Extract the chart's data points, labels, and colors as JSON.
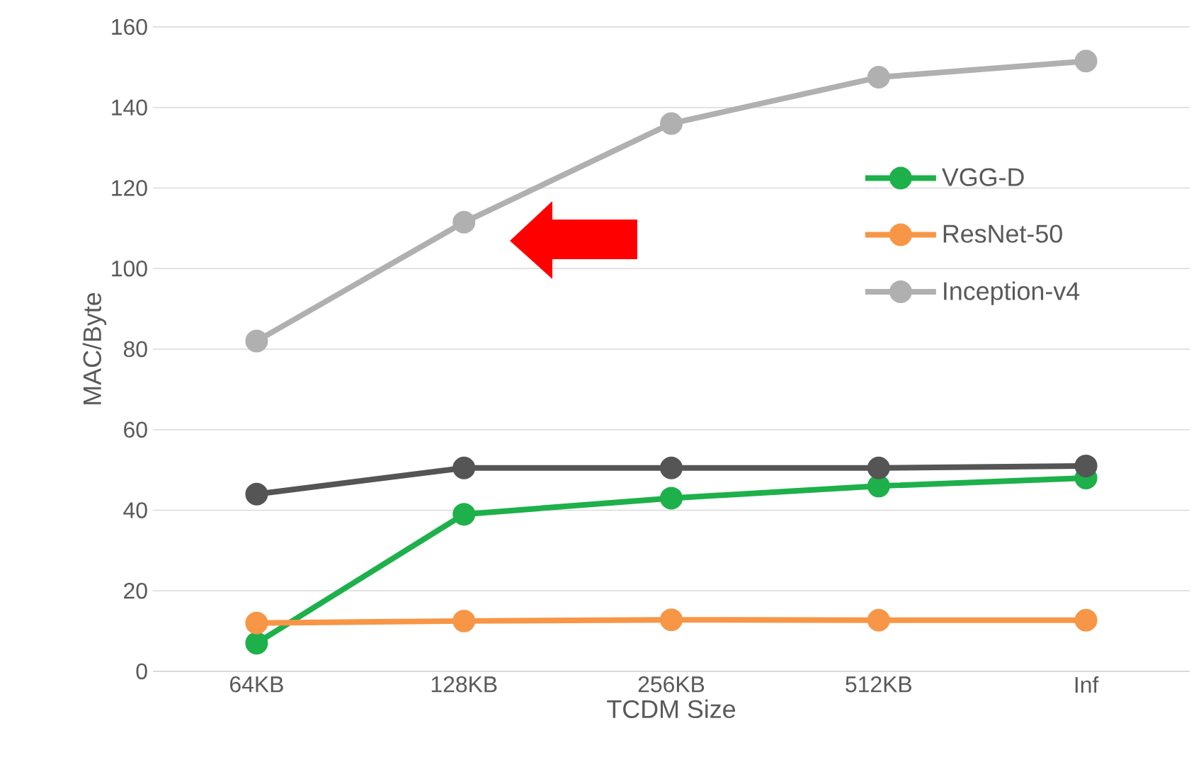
{
  "chart_data": {
    "type": "line",
    "xlabel": "TCDM Size",
    "ylabel": "MAC/Byte",
    "categories": [
      "64KB",
      "128KB",
      "256KB",
      "512KB",
      "Inf"
    ],
    "series": [
      {
        "name": "VGG-D",
        "color": "#1db04b",
        "values": [
          7,
          39,
          43,
          46,
          48
        ]
      },
      {
        "name": "ResNet-50",
        "color": "#f79646",
        "values": [
          12,
          12.5,
          12.8,
          12.7,
          12.7
        ]
      },
      {
        "name": "Inception-v4",
        "color": "#b0b0b0",
        "values": [
          82,
          111.5,
          136,
          147.5,
          151.5
        ]
      },
      {
        "color": "#555555",
        "values": [
          44,
          50.5,
          50.5,
          50.5,
          51
        ]
      }
    ],
    "ylim": [
      0,
      160
    ],
    "yticks": [
      0,
      20,
      40,
      60,
      80,
      100,
      120,
      140,
      160
    ],
    "grid": "y",
    "legend": "right",
    "marker": "circle",
    "line_style": "solid"
  }
}
